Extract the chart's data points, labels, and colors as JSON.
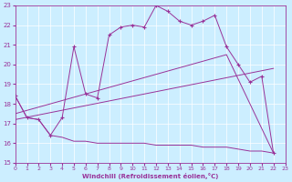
{
  "bg_color": "#cceeff",
  "line_color": "#993399",
  "grid_color": "#ffffff",
  "xlabel": "Windchill (Refroidissement éolien,°C)",
  "xlim": [
    0,
    23
  ],
  "ylim": [
    15,
    23
  ],
  "xticks": [
    0,
    1,
    2,
    3,
    4,
    5,
    6,
    7,
    8,
    9,
    10,
    11,
    12,
    13,
    14,
    15,
    16,
    17,
    18,
    19,
    20,
    21,
    22,
    23
  ],
  "yticks": [
    15,
    16,
    17,
    18,
    19,
    20,
    21,
    22,
    23
  ],
  "curve1_x": [
    0,
    1,
    2,
    3,
    4,
    5,
    6,
    7,
    8,
    9,
    10,
    11,
    12,
    13,
    14,
    15,
    16,
    17,
    18,
    19,
    20,
    21,
    22
  ],
  "curve1_y": [
    18.4,
    17.3,
    17.2,
    16.4,
    17.3,
    20.9,
    18.5,
    18.3,
    21.5,
    21.9,
    22.0,
    21.9,
    23.0,
    22.7,
    22.2,
    22.0,
    22.2,
    22.5,
    20.9,
    20.0,
    19.1,
    19.4,
    15.5
  ],
  "curve2_x": [
    0,
    1,
    2,
    3,
    4,
    5,
    6,
    7,
    8,
    9,
    10,
    11,
    12,
    13,
    14,
    15,
    16,
    17,
    18,
    19,
    20,
    21,
    22
  ],
  "curve2_y": [
    18.4,
    17.3,
    17.2,
    16.4,
    16.3,
    16.1,
    16.1,
    16.0,
    16.0,
    16.0,
    16.0,
    16.0,
    15.9,
    15.9,
    15.9,
    15.9,
    15.8,
    15.8,
    15.8,
    15.7,
    15.6,
    15.6,
    15.5
  ],
  "curve3_x": [
    0,
    22
  ],
  "curve3_y": [
    17.2,
    19.8
  ],
  "curve4_x": [
    0,
    18,
    22
  ],
  "curve4_y": [
    17.5,
    20.5,
    15.5
  ]
}
